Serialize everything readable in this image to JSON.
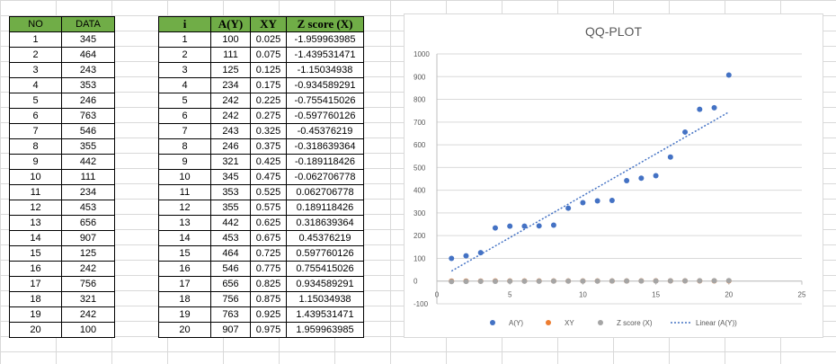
{
  "table1": {
    "headers": [
      "NO",
      "DATA"
    ],
    "rows": [
      [
        "1",
        "345"
      ],
      [
        "2",
        "464"
      ],
      [
        "3",
        "243"
      ],
      [
        "4",
        "353"
      ],
      [
        "5",
        "246"
      ],
      [
        "6",
        "763"
      ],
      [
        "7",
        "546"
      ],
      [
        "8",
        "355"
      ],
      [
        "9",
        "442"
      ],
      [
        "10",
        "111"
      ],
      [
        "11",
        "234"
      ],
      [
        "12",
        "453"
      ],
      [
        "13",
        "656"
      ],
      [
        "14",
        "907"
      ],
      [
        "15",
        "125"
      ],
      [
        "16",
        "242"
      ],
      [
        "17",
        "756"
      ],
      [
        "18",
        "321"
      ],
      [
        "19",
        "242"
      ],
      [
        "20",
        "100"
      ]
    ]
  },
  "table2": {
    "headers": [
      "i",
      "A(Y)",
      "XY",
      "Z score (X)"
    ],
    "rows": [
      [
        "1",
        "100",
        "0.025",
        "-1.959963985"
      ],
      [
        "2",
        "111",
        "0.075",
        "-1.439531471"
      ],
      [
        "3",
        "125",
        "0.125",
        "-1.15034938"
      ],
      [
        "4",
        "234",
        "0.175",
        "-0.934589291"
      ],
      [
        "5",
        "242",
        "0.225",
        "-0.755415026"
      ],
      [
        "6",
        "242",
        "0.275",
        "-0.597760126"
      ],
      [
        "7",
        "243",
        "0.325",
        "-0.45376219"
      ],
      [
        "8",
        "246",
        "0.375",
        "-0.318639364"
      ],
      [
        "9",
        "321",
        "0.425",
        "-0.189118426"
      ],
      [
        "10",
        "345",
        "0.475",
        "-0.062706778"
      ],
      [
        "11",
        "353",
        "0.525",
        "0.062706778"
      ],
      [
        "12",
        "355",
        "0.575",
        "0.189118426"
      ],
      [
        "13",
        "442",
        "0.625",
        "0.318639364"
      ],
      [
        "14",
        "453",
        "0.675",
        "0.45376219"
      ],
      [
        "15",
        "464",
        "0.725",
        "0.597760126"
      ],
      [
        "16",
        "546",
        "0.775",
        "0.755415026"
      ],
      [
        "17",
        "656",
        "0.825",
        "0.934589291"
      ],
      [
        "18",
        "756",
        "0.875",
        "1.15034938"
      ],
      [
        "19",
        "763",
        "0.925",
        "1.439531471"
      ],
      [
        "20",
        "907",
        "0.975",
        "1.959963985"
      ]
    ]
  },
  "chart_data": {
    "type": "scatter",
    "title": "QQ-PLOT",
    "xlabel": "",
    "ylabel": "",
    "xlim": [
      0,
      25
    ],
    "ylim": [
      -100,
      1000
    ],
    "x_ticks": [
      0,
      5,
      10,
      15,
      20,
      25
    ],
    "y_ticks": [
      -100,
      0,
      100,
      200,
      300,
      400,
      500,
      600,
      700,
      800,
      900,
      1000
    ],
    "grid": "horizontal",
    "legend_position": "bottom",
    "series": [
      {
        "name": "A(Y)",
        "color": "#4472c4",
        "x": [
          1,
          2,
          3,
          4,
          5,
          6,
          7,
          8,
          9,
          10,
          11,
          12,
          13,
          14,
          15,
          16,
          17,
          18,
          19,
          20
        ],
        "y": [
          100,
          111,
          125,
          234,
          242,
          242,
          243,
          246,
          321,
          345,
          353,
          355,
          442,
          453,
          464,
          546,
          656,
          756,
          763,
          907
        ]
      },
      {
        "name": "XY",
        "color": "#ed7d31",
        "x": [
          1,
          2,
          3,
          4,
          5,
          6,
          7,
          8,
          9,
          10,
          11,
          12,
          13,
          14,
          15,
          16,
          17,
          18,
          19,
          20
        ],
        "y": [
          0.025,
          0.075,
          0.125,
          0.175,
          0.225,
          0.275,
          0.325,
          0.375,
          0.425,
          0.475,
          0.525,
          0.575,
          0.625,
          0.675,
          0.725,
          0.775,
          0.825,
          0.875,
          0.925,
          0.975
        ]
      },
      {
        "name": "Z score (X)",
        "color": "#a5a5a5",
        "x": [
          1,
          2,
          3,
          4,
          5,
          6,
          7,
          8,
          9,
          10,
          11,
          12,
          13,
          14,
          15,
          16,
          17,
          18,
          19,
          20
        ],
        "y": [
          -1.96,
          -1.44,
          -1.15,
          -0.93,
          -0.76,
          -0.6,
          -0.45,
          -0.32,
          -0.19,
          -0.06,
          0.06,
          0.19,
          0.32,
          0.45,
          0.6,
          0.76,
          0.93,
          1.15,
          1.44,
          1.96
        ]
      }
    ],
    "trendline": {
      "name": "Linear (A(Y))",
      "color": "#4472c4",
      "x": [
        1,
        20
      ],
      "y": [
        44,
        744
      ]
    }
  }
}
